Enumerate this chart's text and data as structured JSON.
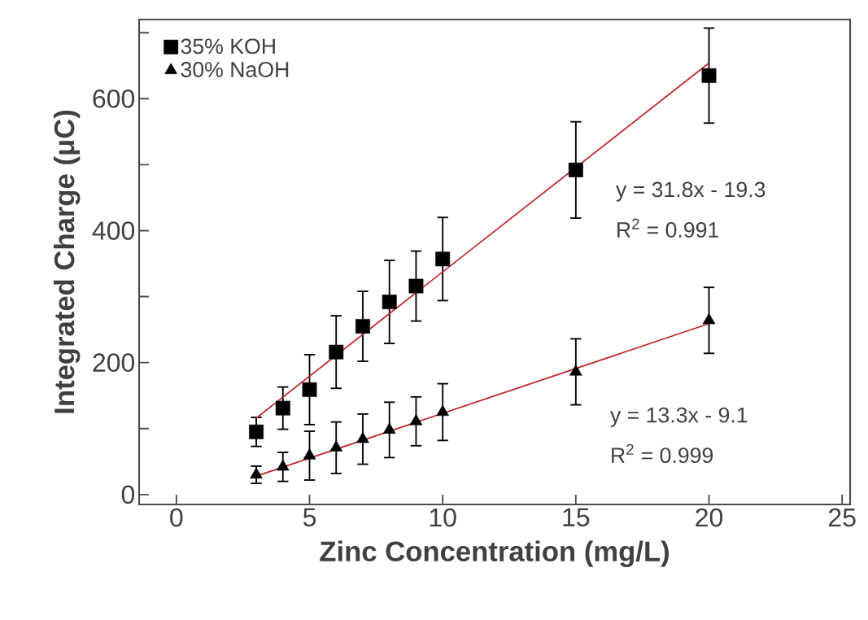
{
  "chart_data": {
    "type": "scatter",
    "xlabel": "Zinc Concentration (mg/L)",
    "ylabel": "Integrated Charge (μC)",
    "xlim": [
      -1.4,
      25.3
    ],
    "ylim": [
      -15,
      720
    ],
    "xticks": [
      0,
      5,
      10,
      15,
      20,
      25
    ],
    "yticks": [
      0,
      {
        "value": 100,
        "label": null
      },
      200,
      {
        "value": 300,
        "label": null
      },
      400,
      {
        "value": 500,
        "label": null
      },
      600,
      {
        "value": 700,
        "label": null
      }
    ],
    "legend": "top left",
    "series": [
      {
        "name": "35% KOH",
        "color": "#000000",
        "marker": "square",
        "x": [
          3,
          4,
          5,
          6,
          7,
          8,
          9,
          10,
          15,
          20
        ],
        "values": [
          95,
          131,
          159,
          216,
          255,
          292,
          316,
          357,
          492,
          635
        ],
        "errors": [
          22,
          32,
          53,
          55,
          53,
          63,
          53,
          63,
          73,
          72
        ]
      },
      {
        "name": "30% NaOH",
        "color": "#000000",
        "marker": "triangle",
        "x": [
          3,
          4,
          5,
          6,
          7,
          8,
          9,
          10,
          15,
          20
        ],
        "values": [
          30,
          42,
          59,
          71,
          84,
          98,
          111,
          125,
          186,
          264
        ],
        "errors": [
          13,
          22,
          37,
          39,
          38,
          42,
          37,
          43,
          50,
          50
        ]
      },
      {
        "type": "line",
        "color": "#c0282d",
        "marker": "none",
        "x": [
          3,
          20
        ],
        "values": [
          116,
          654
        ]
      },
      {
        "type": "line",
        "color": "#c0282d",
        "marker": "none",
        "x": [
          3,
          20
        ],
        "values": [
          28,
          259
        ]
      }
    ],
    "annotations": [
      "y = 31.8x - 19.3",
      "R$^{2}$ = 0.991",
      "y = 13.3x - 9.1",
      "R$^{2}$ = 0.999"
    ]
  }
}
